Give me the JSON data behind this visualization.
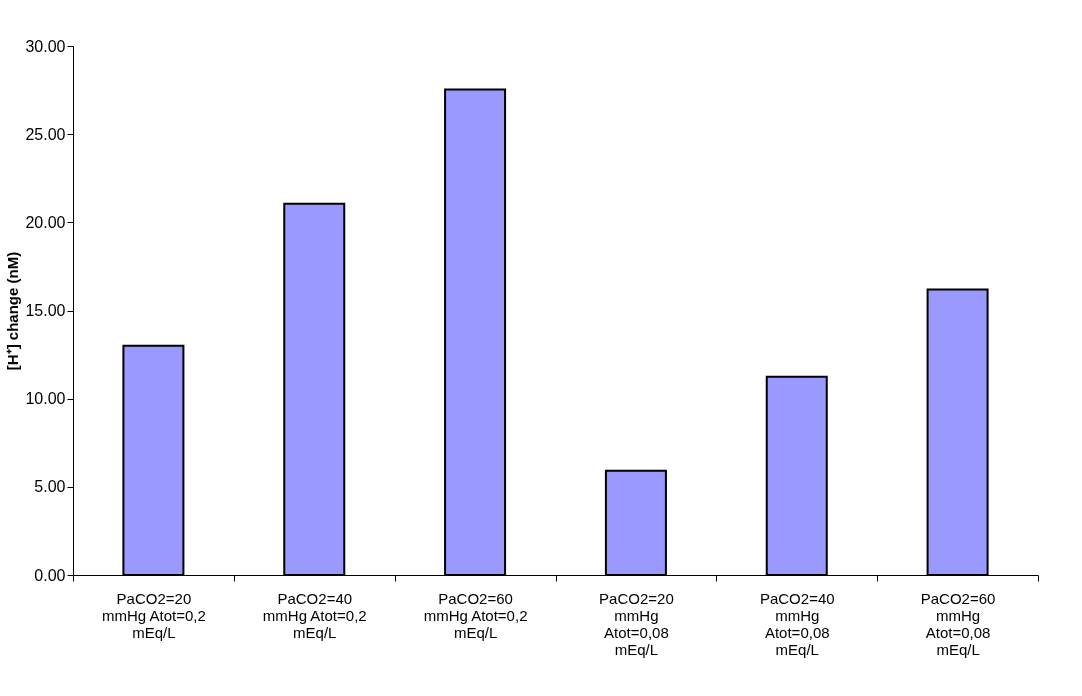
{
  "chart_data": {
    "type": "bar",
    "ylabel": "[H⁺] change (nM)",
    "categories": [
      "PaCO2=20 mmHg Atot=0,2 mEq/L",
      "PaCO2=40 mmHg Atot=0,2 mEq/L",
      "PaCO2=60 mmHg Atot=0,2 mEq/L",
      "PaCO2=20 mmHg Atot=0,08 mEq/L",
      "PaCO2=40 mmHg Atot=0,08 mEq/L",
      "PaCO2=60 mmHg Atot=0,08 mEq/L"
    ],
    "values": [
      13.0,
      21.05,
      27.53,
      5.91,
      11.24,
      16.19
    ],
    "color": "#9999ff",
    "ylim": [
      0,
      30
    ],
    "yticks": [
      {
        "value": 0,
        "label": "0.00"
      },
      {
        "value": 5,
        "label": "5.00"
      },
      {
        "value": 10,
        "label": "10.00"
      },
      {
        "value": 15,
        "label": "15.00"
      },
      {
        "value": 20,
        "label": "20.00"
      },
      {
        "value": 25,
        "label": "25.00"
      },
      {
        "value": 30,
        "label": "30.00"
      }
    ],
    "grid": false
  }
}
